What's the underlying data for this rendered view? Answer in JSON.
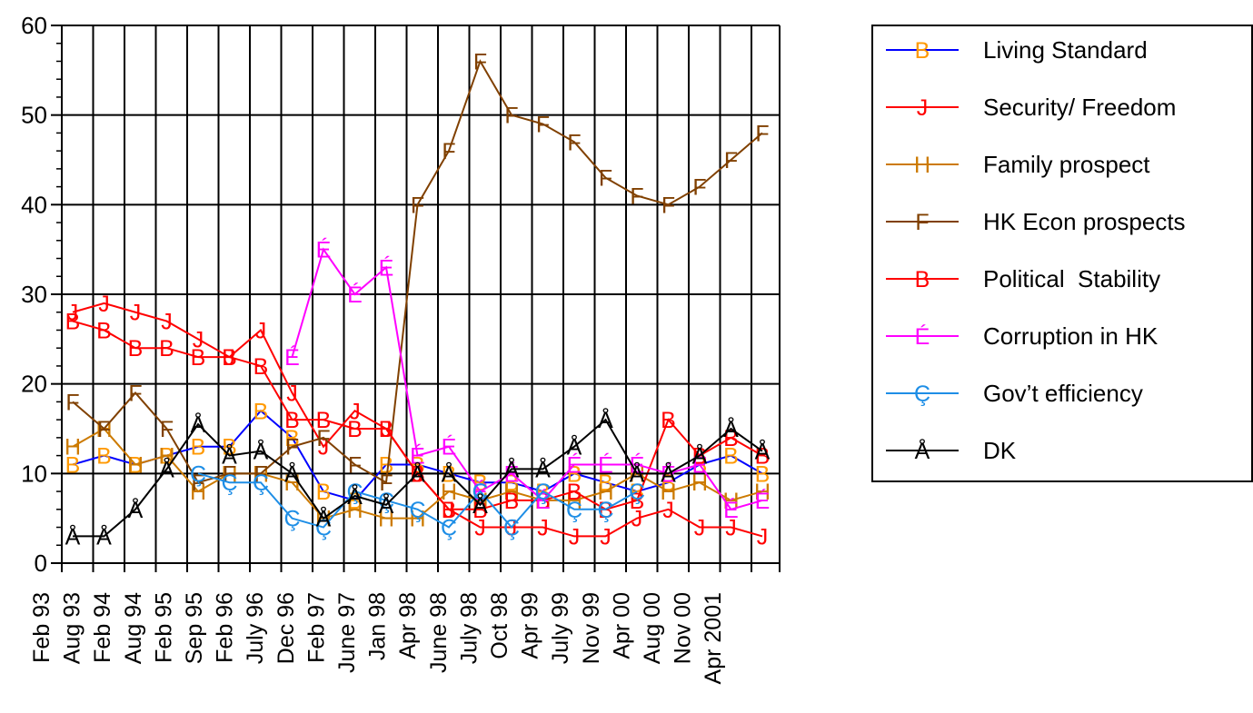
{
  "chart_data": {
    "type": "line",
    "categories": [
      "Feb 93",
      "Aug 93",
      "Feb 94",
      "Aug 94",
      "Feb 95",
      "Sep 95",
      "Feb 96",
      "July 96",
      "Dec 96",
      "Feb 97",
      "June 97",
      "Jan 98",
      "Apr 98",
      "June 98",
      "July 98",
      "Oct 98",
      "Apr 99",
      "July 99",
      "Nov 99",
      "Apr 00",
      "Aug 00",
      "Nov 00",
      "Apr 2001"
    ],
    "ylim": [
      0,
      60
    ],
    "yticks": [
      0,
      10,
      20,
      30,
      40,
      50,
      60
    ],
    "grid": true,
    "legend": "right",
    "series": [
      {
        "name": "Living Standard",
        "color": "#0000ff",
        "marker": "B",
        "marker_color": "#ff9900",
        "values": [
          11,
          12,
          11,
          12,
          13,
          13,
          17,
          14,
          8,
          7,
          11,
          11,
          10,
          9,
          9,
          8,
          10,
          9,
          8,
          9,
          11,
          12,
          10
        ]
      },
      {
        "name": "Security/ Freedom",
        "color": "#ff0000",
        "marker": "J",
        "marker_color": "#ff0000",
        "values": [
          28,
          29,
          28,
          27,
          25,
          23,
          26,
          19,
          13,
          17,
          15,
          10,
          6,
          4,
          4,
          4,
          3,
          3,
          5,
          6,
          4,
          4,
          3
        ]
      },
      {
        "name": "Family prospect",
        "color": "#cc7a00",
        "marker": "H",
        "marker_color": "#cc7a00",
        "values": [
          13,
          15,
          11,
          12,
          8,
          10,
          10,
          9,
          5,
          6,
          5,
          5,
          8,
          7,
          8,
          7,
          7,
          8,
          10,
          8,
          9,
          7,
          8
        ]
      },
      {
        "name": "HK Econ prospects",
        "color": "#804000",
        "marker": "F",
        "marker_color": "#804000",
        "values": [
          18,
          15,
          19,
          15,
          9,
          10,
          10,
          13,
          14,
          11,
          9,
          40,
          46,
          56,
          50,
          49,
          47,
          43,
          41,
          40,
          42,
          45,
          48
        ]
      },
      {
        "name": "Political  Stability",
        "color": "#ff0000",
        "marker": "B",
        "marker_color": "#ff0000",
        "values": [
          27,
          26,
          24,
          24,
          23,
          23,
          22,
          16,
          16,
          15,
          15,
          10,
          6,
          6,
          7,
          7,
          8,
          6,
          7,
          16,
          12,
          14,
          12
        ]
      },
      {
        "name": "Corruption in HK",
        "color": "#ff00ff",
        "marker": "É",
        "marker_color": "#ff00ff",
        "values": [
          null,
          null,
          null,
          null,
          null,
          null,
          null,
          23,
          35,
          30,
          33,
          12,
          13,
          8,
          10,
          7,
          11,
          11,
          11,
          10,
          11,
          6,
          7
        ]
      },
      {
        "name": "Gov’t efficiency",
        "color": "#1e8ee6",
        "marker": "Ç",
        "marker_color": "#1e8ee6",
        "values": [
          null,
          null,
          null,
          null,
          10,
          9,
          9,
          5,
          4,
          8,
          7,
          6,
          4,
          8,
          4,
          8,
          6,
          6,
          8,
          null,
          null,
          null,
          null
        ]
      },
      {
        "name": "DK",
        "color": "#000000",
        "marker": "Å",
        "marker_color": "#000000",
        "values": [
          3,
          3,
          6,
          10.5,
          15.5,
          12,
          12.5,
          10,
          5,
          7.5,
          6.5,
          10,
          10,
          6.5,
          10.5,
          10.5,
          13,
          16,
          10,
          10,
          12,
          15,
          12.5
        ]
      }
    ]
  }
}
